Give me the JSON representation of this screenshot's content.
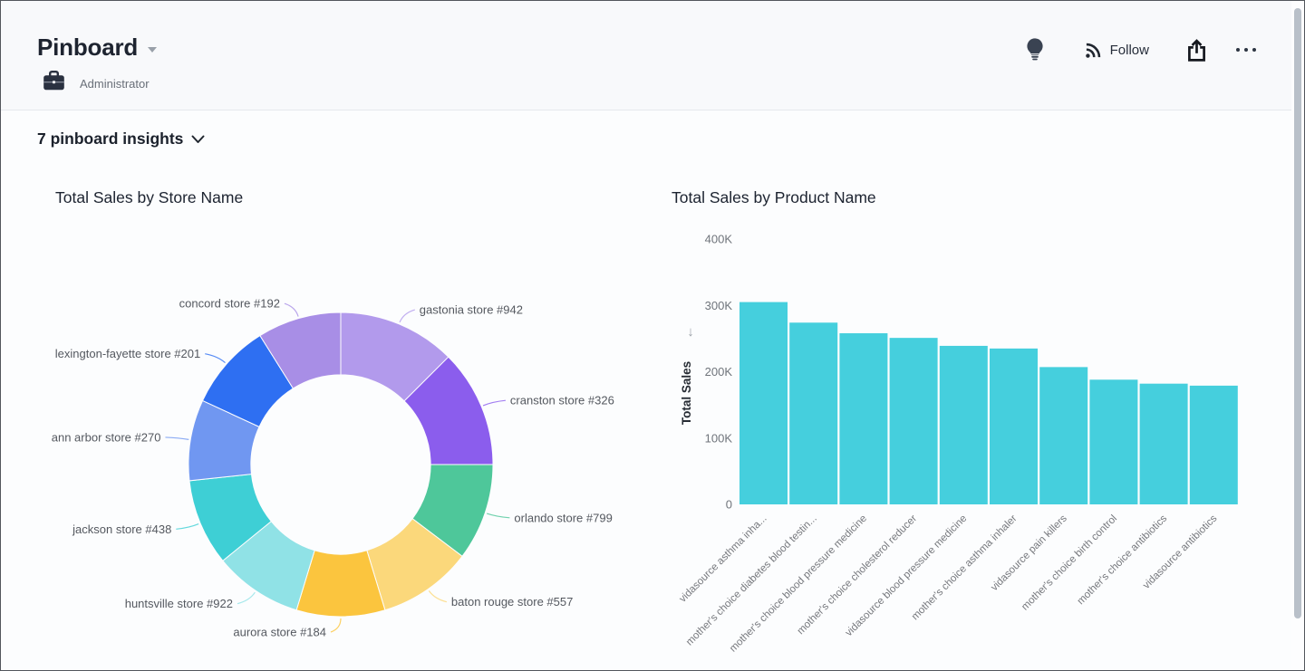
{
  "header": {
    "title": "Pinboard",
    "author": "Administrator",
    "follow_label": "Follow"
  },
  "insights": {
    "label": "7 pinboard insights"
  },
  "icons": {
    "title_caret": "caret-down",
    "bulb": "lightbulb",
    "rss": "rss-feed",
    "share": "share-upload",
    "more": "ellipsis",
    "sort": "arrow-down"
  },
  "colors": {
    "bar_fill": "#45cfdd",
    "title_text": "#1c2330",
    "axis_text": "#6f747b",
    "category_text": "#76787d",
    "donut_label_text": "#54585f"
  },
  "chart_data": [
    {
      "type": "pie",
      "subtype": "donut",
      "title": "Total Sales by Store Name",
      "measure": "Total Sales",
      "dimension": "Store Name",
      "values_unit": "percent share, estimated from arc angles",
      "start_angle_deg": 0,
      "clockwise": true,
      "inner_radius_ratio": 0.59,
      "segments": [
        {
          "label": "gastonia store #942",
          "value": 12.5,
          "color": "#b29aec"
        },
        {
          "label": "cranston store #326",
          "value": 12.5,
          "color": "#8b5ded"
        },
        {
          "label": "orlando store #799",
          "value": 10.3,
          "color": "#4ec79a"
        },
        {
          "label": "baton rouge store #557",
          "value": 10.0,
          "color": "#fbd87b"
        },
        {
          "label": "aurora store #184",
          "value": 9.4,
          "color": "#fbc53e"
        },
        {
          "label": "huntsville store #922",
          "value": 9.4,
          "color": "#90e2e6"
        },
        {
          "label": "jackson store #438",
          "value": 9.2,
          "color": "#3ecfd5"
        },
        {
          "label": "ann arbor store #270",
          "value": 8.6,
          "color": "#7097f1"
        },
        {
          "label": "lexington-fayette store #201",
          "value": 9.2,
          "color": "#2e6ff2"
        },
        {
          "label": "concord store #192",
          "value": 8.9,
          "color": "#a88ee6"
        }
      ]
    },
    {
      "type": "bar",
      "title": "Total Sales by Product Name",
      "xlabel": "",
      "ylabel": "Total Sales",
      "sort_indicator": "descending",
      "grid": false,
      "legend": false,
      "ylim": [
        0,
        400000
      ],
      "yticks": [
        {
          "label": "400K",
          "value": 400000
        },
        {
          "label": "300K",
          "value": 300000
        },
        {
          "label": "200K",
          "value": 200000
        },
        {
          "label": "100K",
          "value": 100000
        },
        {
          "label": "0",
          "value": 0
        }
      ],
      "categories": [
        "vidasource asthma inha...",
        "mother's choice diabetes blood testin...",
        "mother's choice blood pressure medicine",
        "mother's choice cholesterol reducer",
        "vidasource blood pressure medicine",
        "mother's choice asthma inhaler",
        "vidasource pain killers",
        "mother's choice birth control",
        "mother's choice antibiotics",
        "vidasource antibiotics"
      ],
      "values": [
        305000,
        274000,
        258000,
        251000,
        239000,
        235000,
        207000,
        188000,
        182000,
        179000
      ]
    }
  ]
}
